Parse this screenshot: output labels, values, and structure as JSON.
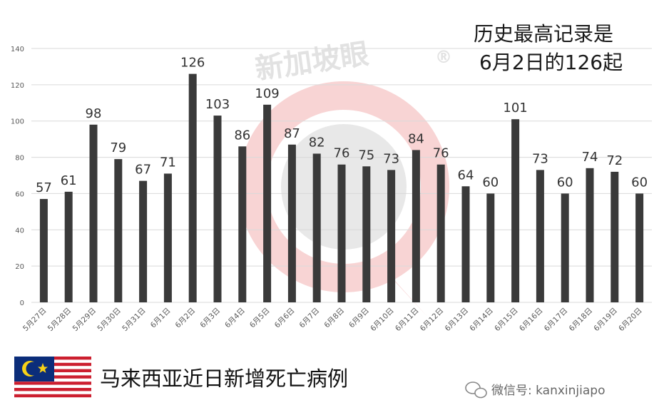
{
  "watermark": {
    "brand_text": "新加坡眼",
    "registered_mark": "®"
  },
  "annotation": {
    "line1": "历史最高记录是",
    "line2": "6月2日的126起"
  },
  "footer": {
    "title": "马来西亚近日新增死亡病例",
    "wechat_label": "微信号: kanxinjiapo"
  },
  "colors": {
    "bar": "#3a3a3a",
    "grid": "#d9d9d9",
    "watermark_red": "#f2b8b8",
    "watermark_gray": "#c8c8c8"
  },
  "icons": {
    "flag": "malaysia-flag-icon",
    "wechat": "wechat-icon"
  },
  "chart_data": {
    "type": "bar",
    "title": "",
    "xlabel": "",
    "ylabel": "",
    "ylim": [
      0,
      140
    ],
    "yticks": [
      "0",
      "20",
      "40",
      "60",
      "80",
      "100",
      "120",
      "140"
    ],
    "grid": true,
    "categories": [
      "5月27日",
      "5月28日",
      "5月29日",
      "5月30日",
      "5月31日",
      "6月1日",
      "6月2日",
      "6月3日",
      "6月4日",
      "6月5日",
      "6月6日",
      "6月7日",
      "6月8日",
      "6月9日",
      "6月10日",
      "6月11日",
      "6月12日",
      "6月13日",
      "6月14日",
      "6月15日",
      "6月16日",
      "6月17日",
      "6月18日",
      "6月19日",
      "6月20日"
    ],
    "values": [
      57,
      61,
      98,
      79,
      67,
      71,
      126,
      103,
      86,
      109,
      87,
      82,
      76,
      75,
      73,
      84,
      76,
      64,
      60,
      101,
      73,
      60,
      74,
      72,
      60
    ]
  }
}
